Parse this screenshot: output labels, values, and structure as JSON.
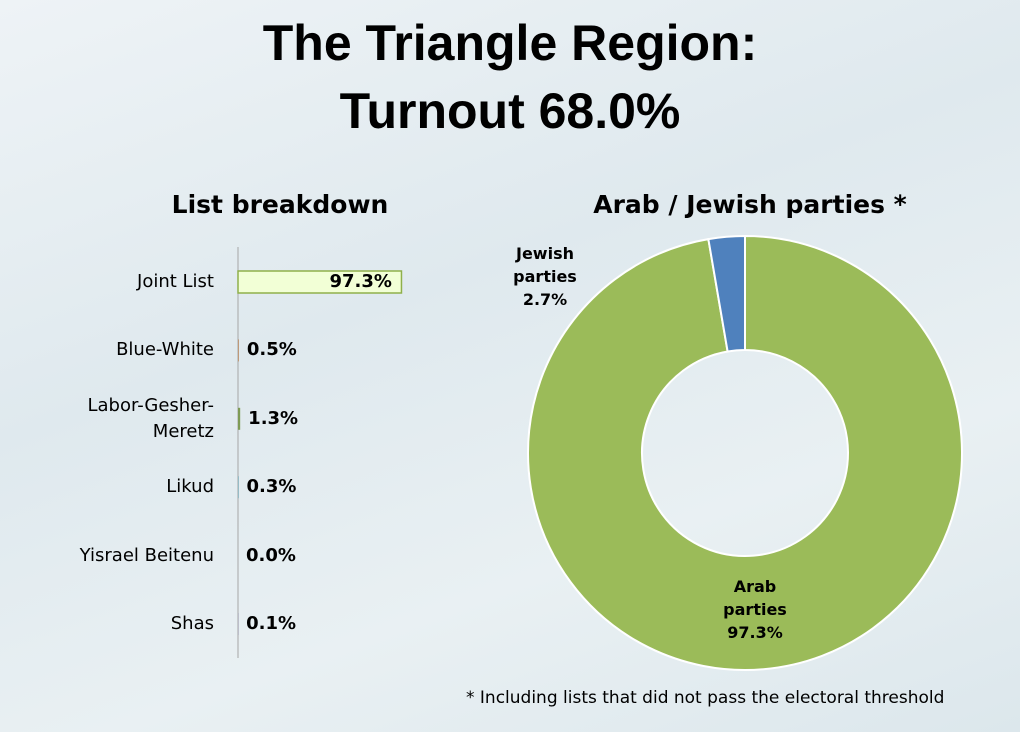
{
  "title_lines": [
    "The Triangle Region:",
    "Turnout 68.0%"
  ],
  "note": "* Including lists that did not pass the electoral threshold",
  "chart_data": [
    {
      "type": "hbar",
      "title": "List breakdown",
      "categories": [
        "Joint List",
        "Blue-White",
        "Labor-Gesher-Meretz",
        "Likud",
        "Yisrael Beitenu",
        "Shas"
      ],
      "values": [
        97.3,
        0.5,
        1.3,
        0.3,
        0.0,
        0.1
      ],
      "value_labels": [
        "97.3%",
        "0.5%",
        "1.3%",
        "0.3%",
        "0.0%",
        "0.1%"
      ],
      "colors": [
        "#f2ffd6",
        "#b98a62",
        "#7e9b55",
        "#4c8d9c",
        "#5b8fc9",
        "#6b5d99"
      ]
    },
    {
      "type": "donut",
      "title": "Arab / Jewish parties *",
      "categories": [
        "Arab parties",
        "Jewish parties"
      ],
      "values": [
        97.3,
        2.7
      ],
      "value_labels": [
        "97.3%",
        "2.7%"
      ],
      "colors": [
        "#9bbb59",
        "#4f81bd"
      ]
    }
  ]
}
